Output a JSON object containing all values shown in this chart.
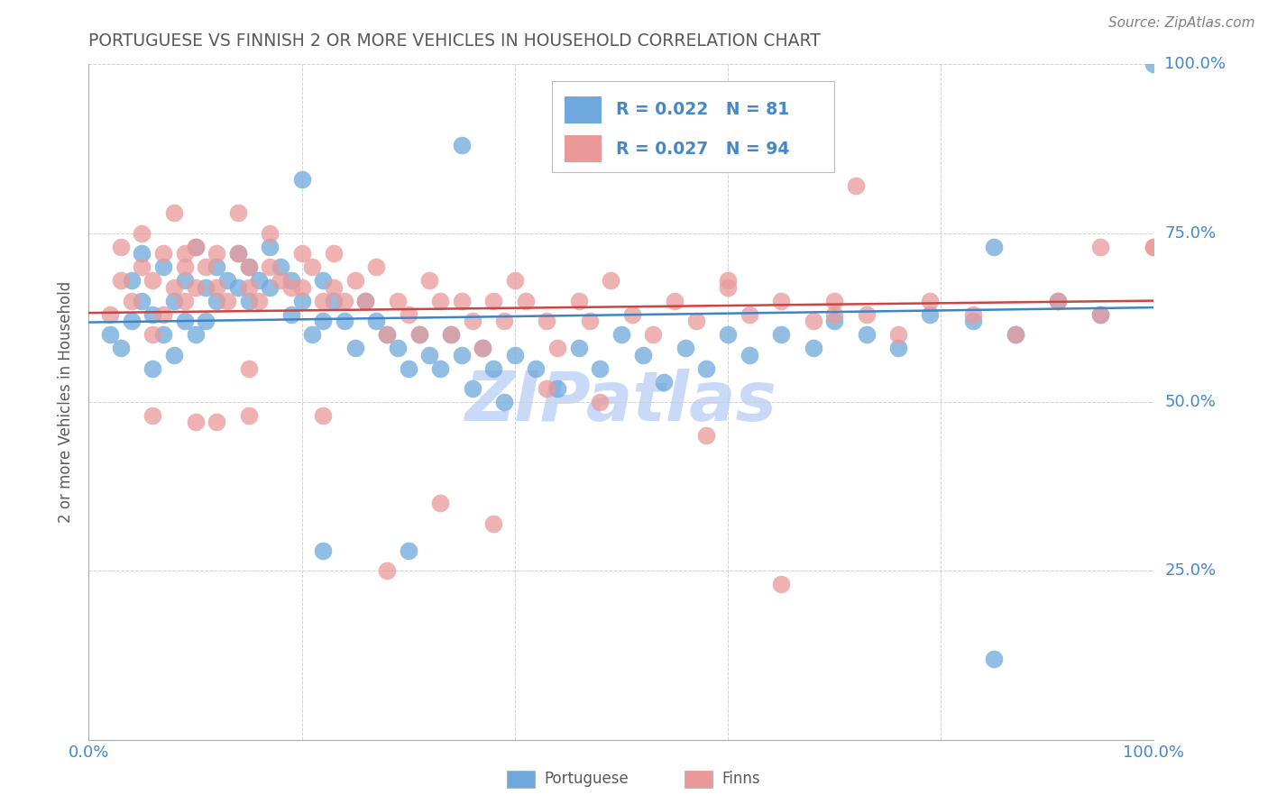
{
  "title": "PORTUGUESE VS FINNISH 2 OR MORE VEHICLES IN HOUSEHOLD CORRELATION CHART",
  "source": "Source: ZipAtlas.com",
  "ylabel": "2 or more Vehicles in Household",
  "legend_r1": "R = 0.022",
  "legend_n1": "N = 81",
  "legend_r2": "R = 0.027",
  "legend_n2": "N = 94",
  "legend_label1": "Portuguese",
  "legend_label2": "Finns",
  "blue_color": "#6fa8dc",
  "pink_color": "#ea9999",
  "blue_line_color": "#3d85c8",
  "pink_line_color": "#cc4444",
  "title_color": "#595959",
  "source_color": "#808080",
  "axis_label_color": "#595959",
  "tick_color": "#4488cc",
  "legend_text_color": "#4488cc",
  "watermark_color": "#c9daf8",
  "background_color": "#ffffff",
  "xlim": [
    0.0,
    1.0
  ],
  "ylim": [
    0.0,
    1.0
  ],
  "xtick_vals": [
    0.0,
    0.2,
    0.4,
    0.6,
    0.8,
    1.0
  ],
  "xtick_labels": [
    "0.0%",
    "",
    "",
    "",
    "",
    "100.0%"
  ],
  "ytick_vals": [
    0.0,
    0.25,
    0.5,
    0.75,
    1.0
  ],
  "ytick_labels_right": [
    "",
    "25.0%",
    "50.0%",
    "75.0%",
    "100.0%"
  ],
  "blue_x": [
    0.02,
    0.03,
    0.04,
    0.04,
    0.05,
    0.05,
    0.06,
    0.06,
    0.07,
    0.07,
    0.08,
    0.08,
    0.09,
    0.09,
    0.1,
    0.1,
    0.11,
    0.11,
    0.12,
    0.12,
    0.13,
    0.14,
    0.14,
    0.15,
    0.15,
    0.16,
    0.17,
    0.17,
    0.18,
    0.19,
    0.19,
    0.2,
    0.21,
    0.22,
    0.22,
    0.23,
    0.24,
    0.25,
    0.26,
    0.27,
    0.28,
    0.29,
    0.3,
    0.31,
    0.32,
    0.33,
    0.34,
    0.35,
    0.36,
    0.37,
    0.38,
    0.39,
    0.4,
    0.42,
    0.44,
    0.46,
    0.48,
    0.5,
    0.52,
    0.54,
    0.56,
    0.58,
    0.6,
    0.62,
    0.65,
    0.68,
    0.7,
    0.73,
    0.76,
    0.79,
    0.83,
    0.87,
    0.91,
    0.95,
    1.0,
    0.22,
    0.3,
    0.85,
    0.35,
    0.2,
    0.85
  ],
  "blue_y": [
    0.6,
    0.58,
    0.62,
    0.68,
    0.65,
    0.72,
    0.55,
    0.63,
    0.6,
    0.7,
    0.65,
    0.57,
    0.68,
    0.62,
    0.73,
    0.6,
    0.67,
    0.62,
    0.65,
    0.7,
    0.68,
    0.72,
    0.67,
    0.65,
    0.7,
    0.68,
    0.73,
    0.67,
    0.7,
    0.63,
    0.68,
    0.65,
    0.6,
    0.68,
    0.62,
    0.65,
    0.62,
    0.58,
    0.65,
    0.62,
    0.6,
    0.58,
    0.55,
    0.6,
    0.57,
    0.55,
    0.6,
    0.57,
    0.52,
    0.58,
    0.55,
    0.5,
    0.57,
    0.55,
    0.52,
    0.58,
    0.55,
    0.6,
    0.57,
    0.53,
    0.58,
    0.55,
    0.6,
    0.57,
    0.6,
    0.58,
    0.62,
    0.6,
    0.58,
    0.63,
    0.62,
    0.6,
    0.65,
    0.63,
    1.0,
    0.28,
    0.28,
    0.12,
    0.88,
    0.83,
    0.73
  ],
  "pink_x": [
    0.02,
    0.03,
    0.03,
    0.04,
    0.05,
    0.05,
    0.06,
    0.06,
    0.07,
    0.07,
    0.08,
    0.08,
    0.09,
    0.09,
    0.1,
    0.1,
    0.11,
    0.12,
    0.12,
    0.13,
    0.14,
    0.14,
    0.15,
    0.15,
    0.16,
    0.17,
    0.17,
    0.18,
    0.19,
    0.2,
    0.2,
    0.21,
    0.22,
    0.23,
    0.23,
    0.24,
    0.25,
    0.26,
    0.27,
    0.28,
    0.29,
    0.3,
    0.31,
    0.32,
    0.33,
    0.34,
    0.35,
    0.36,
    0.37,
    0.38,
    0.39,
    0.4,
    0.41,
    0.43,
    0.44,
    0.46,
    0.47,
    0.49,
    0.51,
    0.53,
    0.55,
    0.57,
    0.6,
    0.62,
    0.65,
    0.68,
    0.7,
    0.73,
    0.76,
    0.79,
    0.83,
    0.87,
    0.91,
    0.95,
    1.0,
    0.15,
    0.15,
    0.1,
    0.06,
    0.12,
    0.09,
    0.22,
    0.28,
    0.33,
    0.38,
    0.43,
    0.48,
    0.58,
    0.65,
    0.7,
    0.6,
    0.72,
    1.0,
    0.95
  ],
  "pink_y": [
    0.63,
    0.68,
    0.73,
    0.65,
    0.7,
    0.75,
    0.6,
    0.68,
    0.63,
    0.72,
    0.67,
    0.78,
    0.7,
    0.65,
    0.73,
    0.67,
    0.7,
    0.67,
    0.72,
    0.65,
    0.72,
    0.78,
    0.7,
    0.67,
    0.65,
    0.7,
    0.75,
    0.68,
    0.67,
    0.72,
    0.67,
    0.7,
    0.65,
    0.72,
    0.67,
    0.65,
    0.68,
    0.65,
    0.7,
    0.6,
    0.65,
    0.63,
    0.6,
    0.68,
    0.65,
    0.6,
    0.65,
    0.62,
    0.58,
    0.65,
    0.62,
    0.68,
    0.65,
    0.62,
    0.58,
    0.65,
    0.62,
    0.68,
    0.63,
    0.6,
    0.65,
    0.62,
    0.67,
    0.63,
    0.65,
    0.62,
    0.65,
    0.63,
    0.6,
    0.65,
    0.63,
    0.6,
    0.65,
    0.63,
    0.73,
    0.48,
    0.55,
    0.47,
    0.48,
    0.47,
    0.72,
    0.48,
    0.25,
    0.35,
    0.32,
    0.52,
    0.5,
    0.45,
    0.23,
    0.63,
    0.68,
    0.82,
    0.73,
    0.73
  ]
}
